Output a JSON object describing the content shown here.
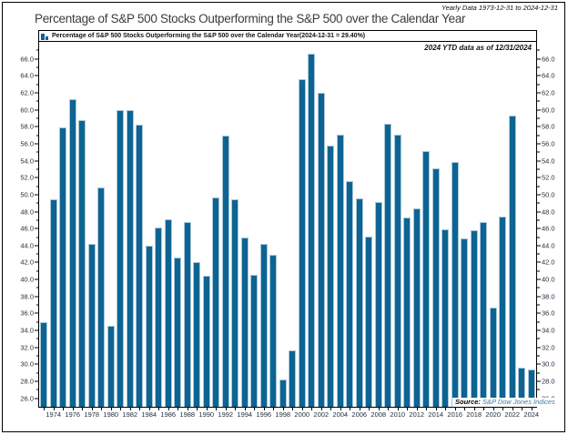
{
  "header": {
    "range_note": "Yearly Data 1973-12-31 to 2024-12-31",
    "title": "Percentage of S&P 500 Stocks Outperforming the S&P 500 over the Calendar Year"
  },
  "legend": {
    "label": "Percentage of S&P 500 Stocks Outperforming the S&P 500 over the Calendar Year(2024-12-31 = 29.40%)",
    "swatch_icon": "mini-bars-icon",
    "swatch_color": "#0d6493"
  },
  "annotation": "2024 YTD data as of 12/31/2024",
  "source": {
    "prefix": "Source:",
    "text": "S&P Dow Jones Indices"
  },
  "chart_data": {
    "type": "bar",
    "title": "Percentage of S&P 500 Stocks Outperforming the S&P 500 over the Calendar Year",
    "x": [
      1973,
      1974,
      1975,
      1976,
      1977,
      1978,
      1979,
      1980,
      1981,
      1982,
      1983,
      1984,
      1985,
      1986,
      1987,
      1988,
      1989,
      1990,
      1991,
      1992,
      1993,
      1994,
      1995,
      1996,
      1997,
      1998,
      1999,
      2000,
      2001,
      2002,
      2003,
      2004,
      2005,
      2006,
      2007,
      2008,
      2009,
      2010,
      2011,
      2012,
      2013,
      2014,
      2015,
      2016,
      2017,
      2018,
      2019,
      2020,
      2021,
      2022,
      2023,
      2024
    ],
    "values": [
      35.0,
      49.4,
      57.9,
      61.2,
      58.8,
      44.2,
      50.8,
      34.5,
      60.0,
      60.0,
      58.2,
      44.0,
      46.1,
      47.1,
      42.6,
      46.8,
      42.1,
      40.4,
      49.7,
      57.0,
      49.5,
      44.9,
      40.5,
      44.2,
      42.9,
      28.2,
      31.6,
      63.6,
      66.6,
      62.0,
      55.8,
      57.1,
      51.6,
      49.6,
      45.1,
      49.1,
      58.3,
      57.1,
      47.3,
      48.4,
      55.1,
      53.1,
      45.9,
      53.8,
      44.8,
      45.8,
      46.8,
      36.7,
      47.4,
      59.3,
      29.6,
      29.4
    ],
    "ylim": [
      25,
      68
    ],
    "yticks": [
      26,
      28,
      30,
      32,
      34,
      36,
      38,
      40,
      42,
      44,
      46,
      48,
      50,
      52,
      54,
      56,
      58,
      60,
      62,
      64,
      66
    ],
    "ytick_label_format": "one-decimal",
    "minor_ytick_step": 1,
    "xtick_labels": [
      1974,
      1976,
      1978,
      1980,
      1982,
      1984,
      1986,
      1988,
      1990,
      1992,
      1994,
      1996,
      1998,
      2000,
      2002,
      2004,
      2006,
      2008,
      2010,
      2012,
      2014,
      2016,
      2018,
      2020,
      2022,
      2024
    ],
    "grid": false,
    "legend_position": "top-strip",
    "bar_color": "#0d6493",
    "bar_edge_color": "#a9c7d9"
  }
}
